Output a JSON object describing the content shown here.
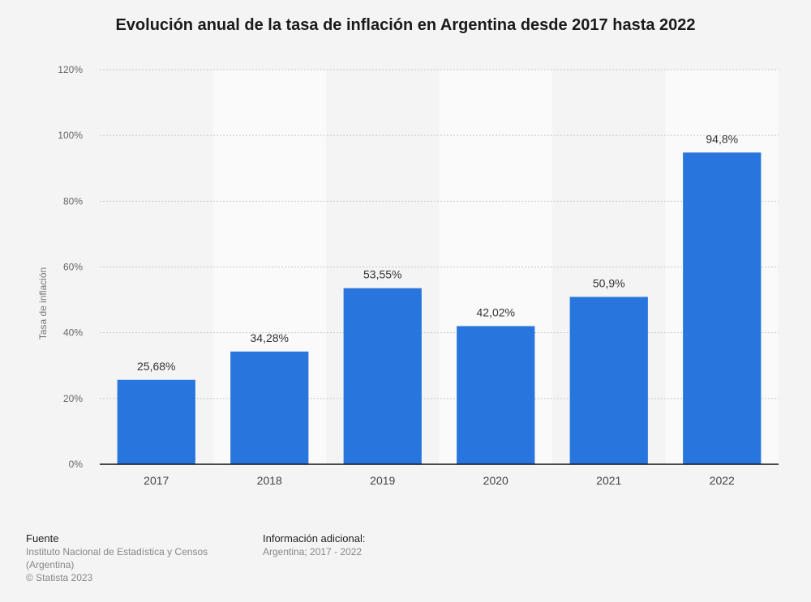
{
  "chart_data": {
    "type": "bar",
    "title": "Evolución anual de la tasa de inflación en Argentina desde 2017 hasta 2022",
    "xlabel": "",
    "ylabel": "Tasa de inflación",
    "categories": [
      "2017",
      "2018",
      "2019",
      "2020",
      "2021",
      "2022"
    ],
    "values": [
      25.68,
      34.28,
      53.55,
      42.02,
      50.9,
      94.8
    ],
    "data_labels": [
      "25,68%",
      "34,28%",
      "53,55%",
      "42,02%",
      "50,9%",
      "94,8%"
    ],
    "ylim": [
      0,
      120
    ],
    "yticks": [
      0,
      20,
      40,
      60,
      80,
      100,
      120
    ],
    "ytick_labels": [
      "0%",
      "20%",
      "40%",
      "60%",
      "80%",
      "100%",
      "120%"
    ],
    "grid": true,
    "legend": "none",
    "colors": {
      "bar": "#2876dd",
      "band_dark": "#f4f4f4",
      "band_light": "#fafafa",
      "grid": "#c8c8c8"
    }
  },
  "footer": {
    "source_heading": "Fuente",
    "source_lines": [
      "Instituto Nacional de Estadística y Censos",
      "(Argentina)",
      "© Statista 2023"
    ],
    "info_heading": "Información adicional:",
    "info_text": "Argentina; 2017 - 2022"
  }
}
